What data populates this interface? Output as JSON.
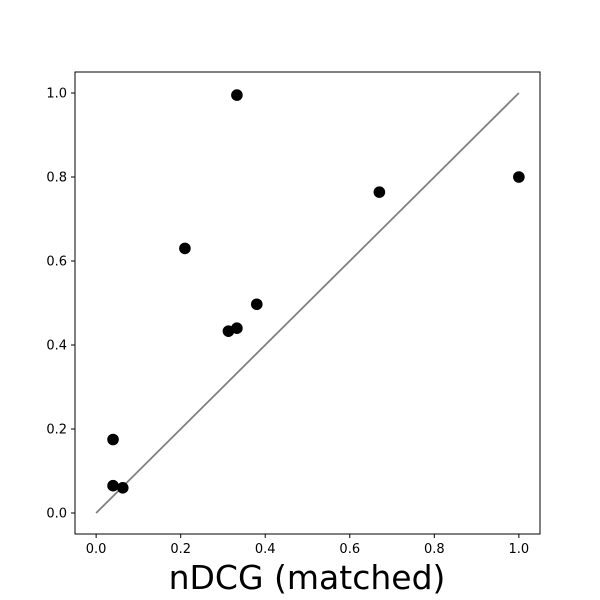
{
  "chart_data": {
    "type": "scatter",
    "xlabel": "nDCG (matched)",
    "ylabel": "",
    "xlim": [
      -0.05,
      1.05
    ],
    "ylim": [
      -0.05,
      1.05
    ],
    "x_ticks": [
      "0.0",
      "0.2",
      "0.4",
      "0.6",
      "0.8",
      "1.0"
    ],
    "y_ticks": [
      "0.0",
      "0.2",
      "0.4",
      "0.6",
      "0.8",
      "1.0"
    ],
    "grid": false,
    "legend": "none",
    "points": [
      {
        "x": 0.04,
        "y": 0.065
      },
      {
        "x": 0.063,
        "y": 0.06
      },
      {
        "x": 0.04,
        "y": 0.175
      },
      {
        "x": 0.21,
        "y": 0.63
      },
      {
        "x": 0.313,
        "y": 0.433
      },
      {
        "x": 0.333,
        "y": 0.44
      },
      {
        "x": 0.38,
        "y": 0.497
      },
      {
        "x": 0.333,
        "y": 0.995
      },
      {
        "x": 0.67,
        "y": 0.764
      },
      {
        "x": 1.0,
        "y": 0.8
      }
    ],
    "reference_line": {
      "x": [
        0.0,
        1.0
      ],
      "y": [
        0.0,
        1.0
      ]
    },
    "colors": {
      "points": "#000000",
      "reference_line": "#808080",
      "axes": "#000000"
    }
  }
}
